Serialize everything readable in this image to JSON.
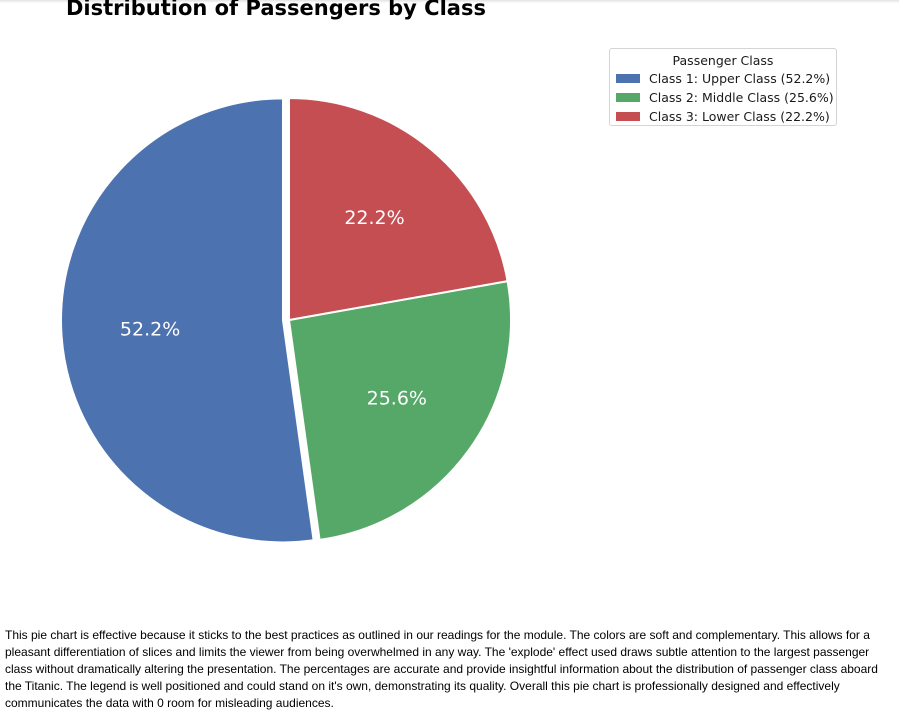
{
  "chart_data": {
    "type": "pie",
    "title": "Distribution of Passengers by Class",
    "categories": [
      "Class 1: Upper Class",
      "Class 2: Middle Class",
      "Class 3: Lower Class"
    ],
    "values": [
      52.2,
      25.6,
      22.2
    ],
    "slice_labels": [
      "52.2%",
      "25.6%",
      "22.2%"
    ],
    "colors": [
      "#4c72b0",
      "#55a868",
      "#c44e52"
    ],
    "start_angle_deg": 90,
    "direction": "counterclockwise",
    "legend": {
      "title": "Passenger Class",
      "placement": "upper-right",
      "entries": [
        "Class 1: Upper Class (52.2%)",
        "Class 2: Middle Class (25.6%)",
        "Class 3: Lower Class (22.2%)"
      ]
    }
  },
  "description": "This pie chart is effective because it sticks to the best practices as outlined in our readings for the module. The colors are soft and complementary. This allows for a pleasant differentiation of slices and limits the viewer from being overwhelmed in any way. The 'explode' effect used draws subtle attention to the largest passenger class without dramatically altering the presentation. The percentages are accurate and provide insightful information about the distribution of passenger class aboard the Titanic. The legend is well positioned and could stand on it's own, demonstrating its quality. Overall this pie chart is professionally designed and effectively communicates the data with 0 room for misleading audiences."
}
